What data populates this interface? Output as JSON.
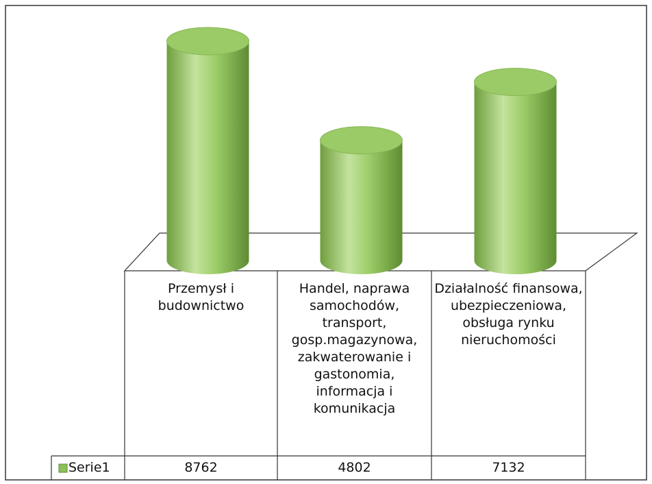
{
  "chart_data": {
    "type": "bar",
    "categories": [
      "Przemysł i budownictwo",
      "Handel, naprawa samochodów, transport, gosp.magazynowa, zakwaterowanie i gastonomia, informacja i komunikacja",
      "Działalność finansowa, ubezpieczeniowa, obsługa rynku nieruchomości"
    ],
    "series": [
      {
        "name": "Serie1",
        "color": "#8dc05a",
        "values": [
          8762,
          4802,
          7132
        ]
      }
    ]
  }
}
